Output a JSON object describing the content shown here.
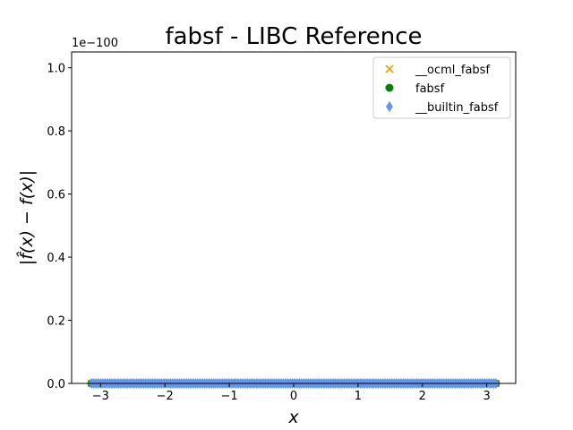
{
  "chart_data": {
    "type": "scatter",
    "title": "fabsf - LIBC Reference",
    "xlabel": "x",
    "ylabel": "|f̂(x) − f(x)|",
    "y_offset_label": "1e−100",
    "xlim": [
      -3.45,
      3.45
    ],
    "ylim": [
      0,
      1.05
    ],
    "x_ticks": [
      {
        "value": -3,
        "label": "−3"
      },
      {
        "value": -2,
        "label": "−2"
      },
      {
        "value": -1,
        "label": "−1"
      },
      {
        "value": 0,
        "label": "0"
      },
      {
        "value": 1,
        "label": "1"
      },
      {
        "value": 2,
        "label": "2"
      },
      {
        "value": 3,
        "label": "3"
      }
    ],
    "y_ticks": [
      {
        "value": 0.0,
        "label": "0.0"
      },
      {
        "value": 0.2,
        "label": "0.2"
      },
      {
        "value": 0.4,
        "label": "0.4"
      },
      {
        "value": 0.6,
        "label": "0.6"
      },
      {
        "value": 0.8,
        "label": "0.8"
      },
      {
        "value": 1.0,
        "label": "1.0"
      }
    ],
    "x_range": [
      -3.1416,
      3.1416
    ],
    "grid": false,
    "legend_position": "top-right",
    "series": [
      {
        "name": "__ocml_fabsf",
        "marker": "x",
        "color": "#f0a30a",
        "y": 0
      },
      {
        "name": "fabsf",
        "marker": "circle",
        "color": "#008000",
        "y": 0
      },
      {
        "name": "__builtin_fabsf",
        "marker": "diamond",
        "color": "#6495ed",
        "y": 0
      }
    ]
  }
}
